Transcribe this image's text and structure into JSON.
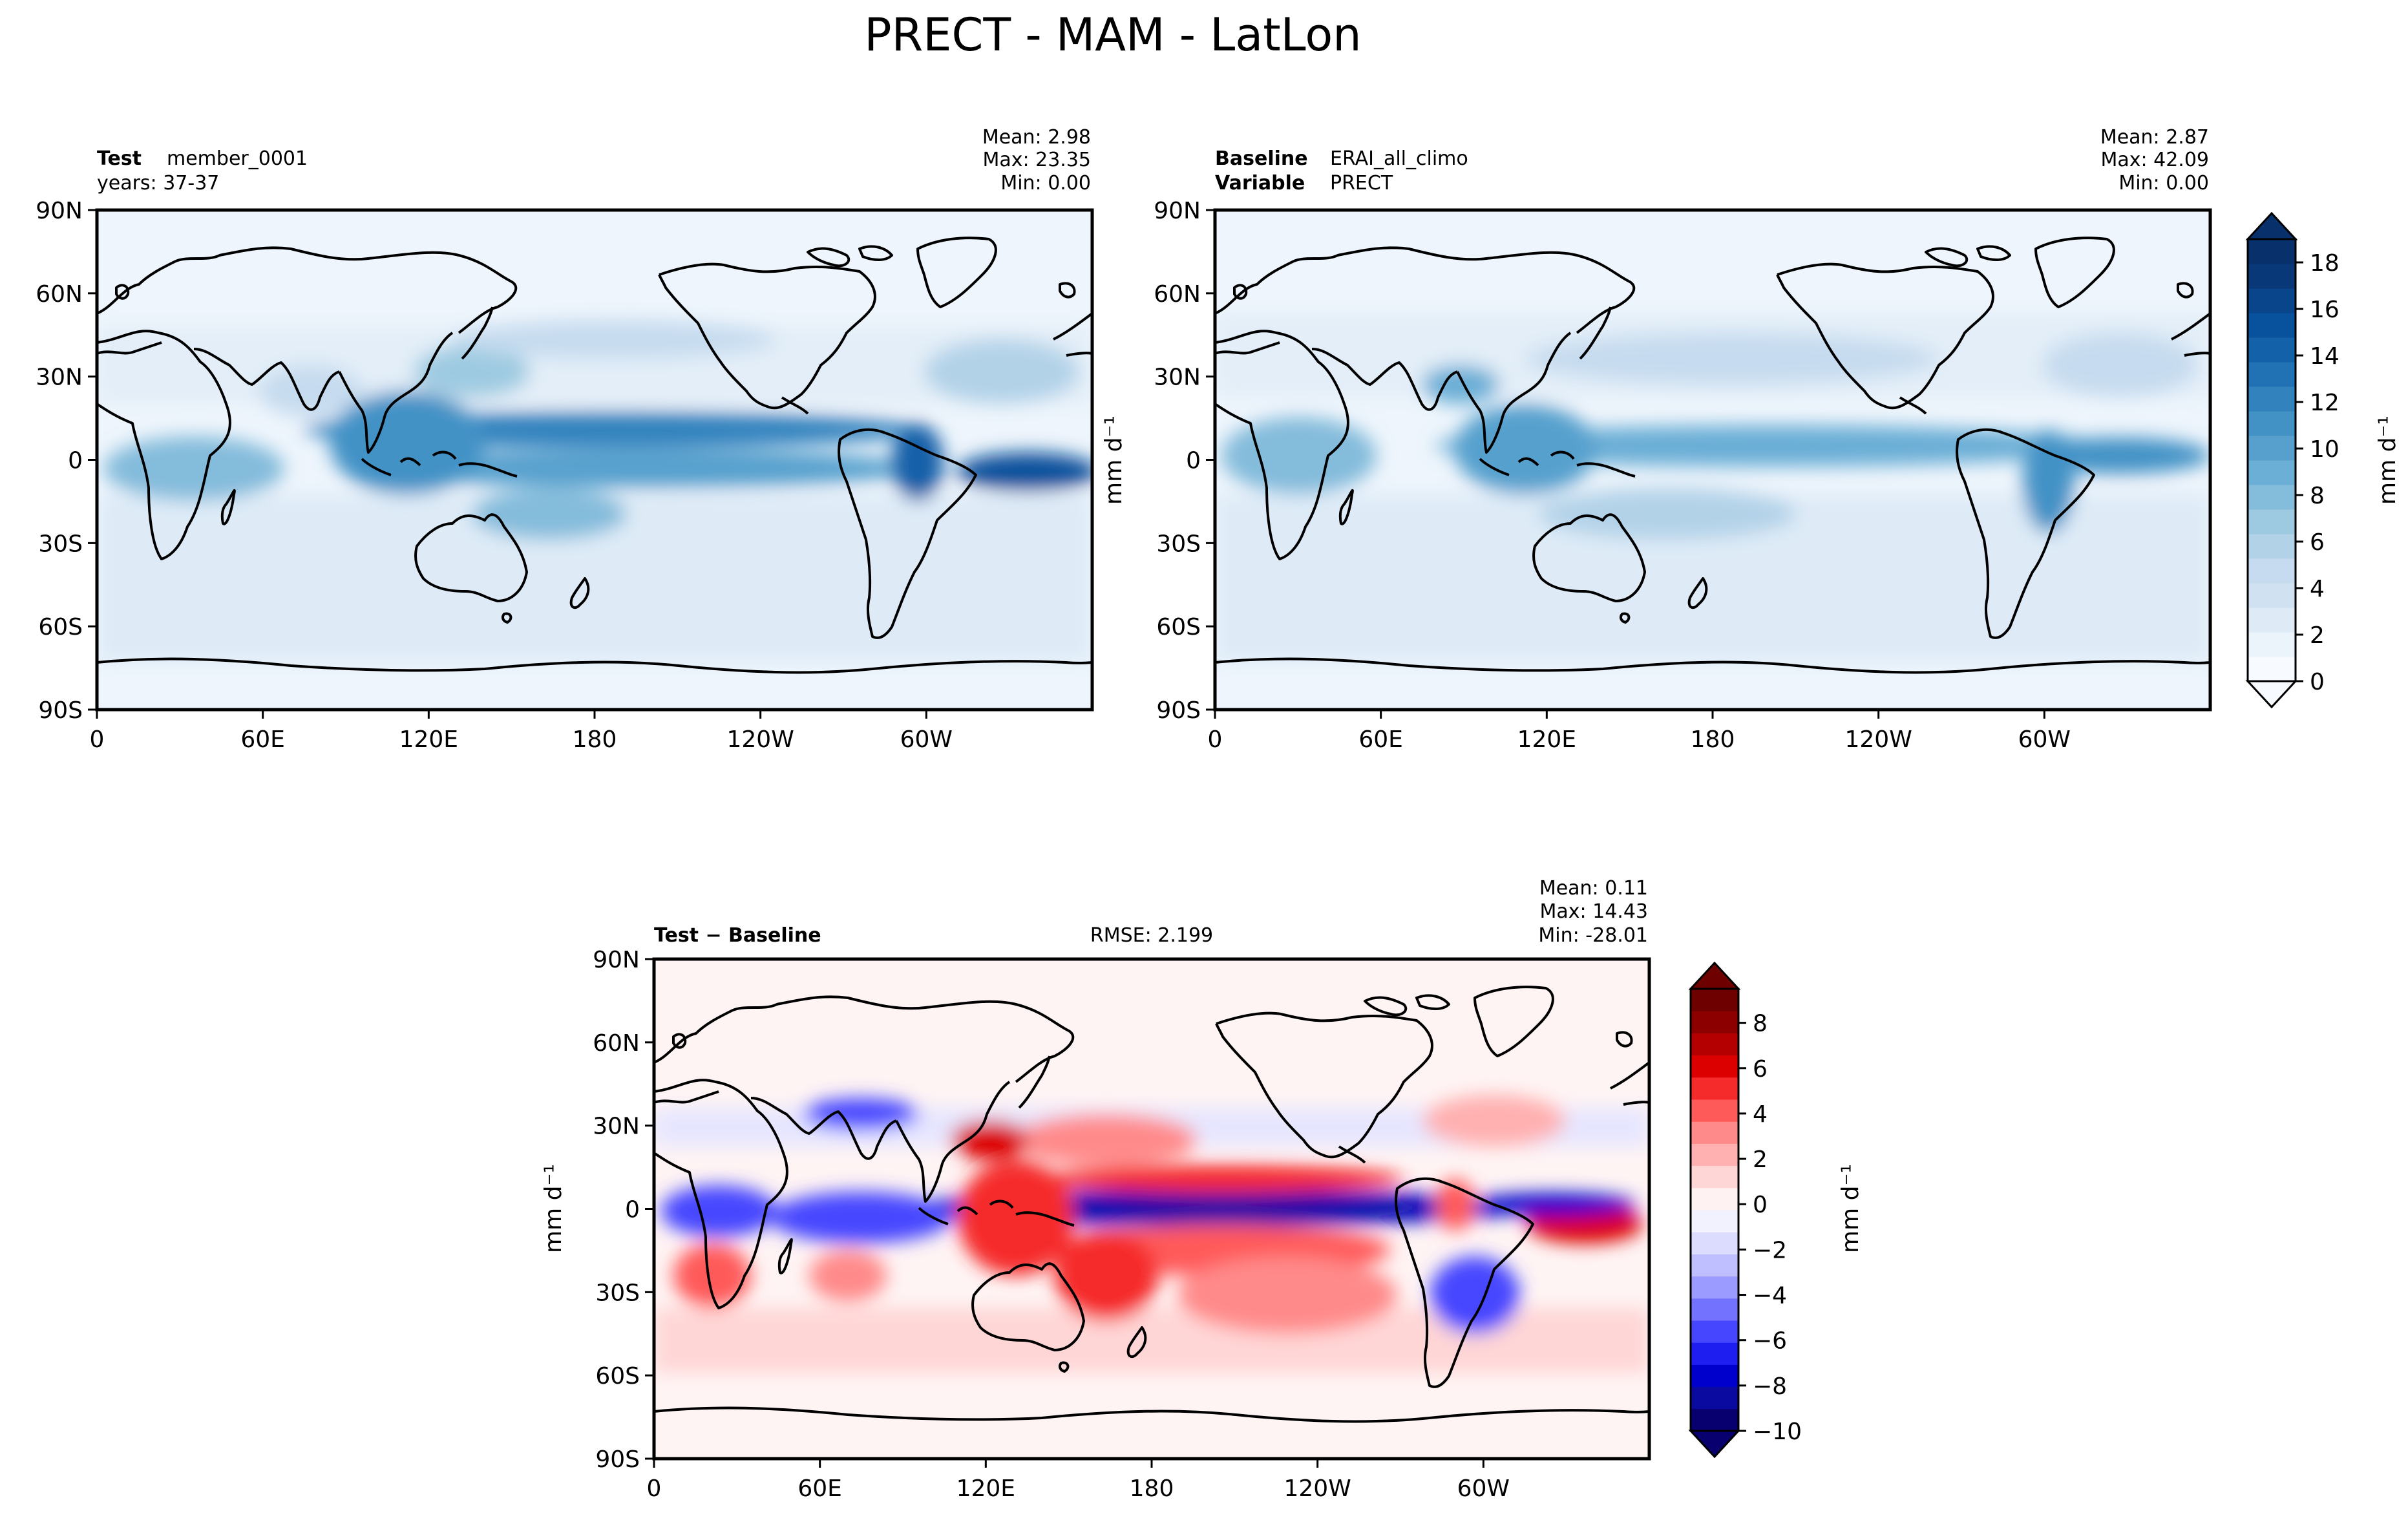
{
  "figure": {
    "title": "PRECT - MAM - LatLon"
  },
  "colors": {
    "blues": [
      "#f7fbff",
      "#ebf3fb",
      "#deebf7",
      "#d0e1f2",
      "#c6dbef",
      "#b2d2e8",
      "#9ecae1",
      "#84bcdb",
      "#6baed6",
      "#57a0ce",
      "#4292c6",
      "#3282be",
      "#2171b5",
      "#1361a9",
      "#08519c",
      "#08458a",
      "#083877",
      "#08306b"
    ],
    "diverging": [
      "#08006e",
      "#0a0aa0",
      "#0000cd",
      "#1e1ef0",
      "#4646ff",
      "#7272ff",
      "#9a9aff",
      "#bfbfff",
      "#dcdcff",
      "#f2f2ff",
      "#fff2f2",
      "#ffd6d6",
      "#ffb0b0",
      "#ff8a8a",
      "#ff5a5a",
      "#f52a2a",
      "#dc0000",
      "#b40000",
      "#8c0000",
      "#6e0000"
    ],
    "coast": "#000000"
  },
  "chart_data": [
    {
      "type": "heatmap",
      "panel": "test",
      "label_bold": "Test",
      "label_text": "member_0001",
      "label_line2": "years: 37-37",
      "stats": [
        "Mean:  2.98",
        "Max: 23.35",
        "Min:  0.00"
      ],
      "mean": 2.98,
      "max": 23.35,
      "min": 0.0,
      "x_ticks": [
        "0",
        "60E",
        "120E",
        "180",
        "120W",
        "60W"
      ],
      "y_ticks": [
        "90N",
        "60N",
        "30N",
        "0",
        "30S",
        "60S",
        "90S"
      ],
      "xlim": [
        0,
        360
      ],
      "ylim": [
        -90,
        90
      ]
    },
    {
      "type": "heatmap",
      "panel": "baseline",
      "label_bold": "Baseline",
      "label_text": "ERAI_all_climo",
      "label_bold2": "Variable",
      "label_text2": "PRECT",
      "stats": [
        "Mean:  2.87",
        "Max: 42.09",
        "Min:  0.00"
      ],
      "mean": 2.87,
      "max": 42.09,
      "min": 0.0,
      "x_ticks": [
        "0",
        "60E",
        "120E",
        "180",
        "120W",
        "60W"
      ],
      "y_ticks": [
        "90N",
        "60N",
        "30N",
        "0",
        "30S",
        "60S",
        "90S"
      ],
      "ylabel": "mm d⁻¹",
      "xlim": [
        0,
        360
      ],
      "ylim": [
        -90,
        90
      ]
    },
    {
      "type": "heatmap",
      "panel": "difference",
      "label_bold": "Test − Baseline",
      "rmse": "RMSE: 2.199",
      "stats": [
        "Mean:  0.11",
        "Max: 14.43",
        "Min: -28.01"
      ],
      "mean": 0.11,
      "max": 14.43,
      "min": -28.01,
      "x_ticks": [
        "0",
        "60E",
        "120E",
        "180",
        "120W",
        "60W"
      ],
      "y_ticks": [
        "90N",
        "60N",
        "30N",
        "0",
        "30S",
        "60S",
        "90S"
      ],
      "ylabel": "mm d⁻¹",
      "xlim": [
        0,
        360
      ],
      "ylim": [
        -90,
        90
      ]
    },
    {
      "type": "colorbar",
      "for": "test+baseline",
      "ticks": [
        0,
        2,
        4,
        6,
        8,
        10,
        12,
        14,
        16,
        18
      ],
      "range": [
        0,
        19
      ],
      "label": "mm d⁻¹"
    },
    {
      "type": "colorbar",
      "for": "difference",
      "ticks": [
        -10,
        -8,
        -6,
        -4,
        -2,
        0,
        2,
        4,
        6,
        8
      ],
      "range": [
        -10,
        9.5
      ],
      "label": "mm d⁻¹"
    }
  ]
}
